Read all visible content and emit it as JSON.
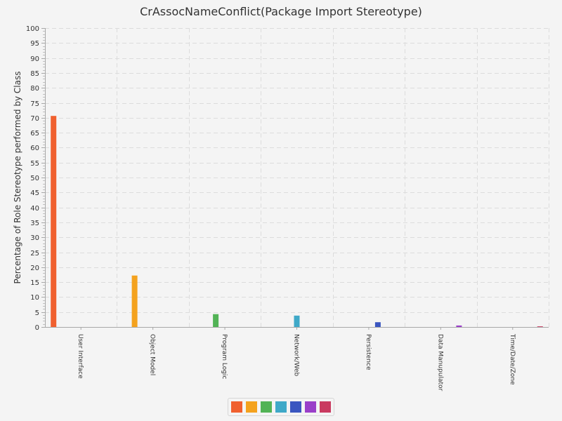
{
  "chart_data": {
    "type": "bar",
    "title": "CrAssocNameConflict(Package Import Stereotype)",
    "xlabel": "",
    "ylabel": "Percentage of Role Stereotype performed by Class",
    "ylim": [
      0,
      100
    ],
    "ytick_step": 5,
    "grid": true,
    "legend_position": "bottom",
    "categories": [
      "User Interface",
      "Object Model",
      "Program Logic",
      "Network/Web",
      "Persistence",
      "Data Manupulator",
      "Time/Date/Zone"
    ],
    "values": [
      70.6,
      17.2,
      4.3,
      3.8,
      1.6,
      0.5,
      0.2
    ],
    "colors": [
      "#f0602f",
      "#f4a21e",
      "#52b356",
      "#3fa9c8",
      "#3a56c0",
      "#9a3fc9",
      "#c93a60"
    ]
  }
}
